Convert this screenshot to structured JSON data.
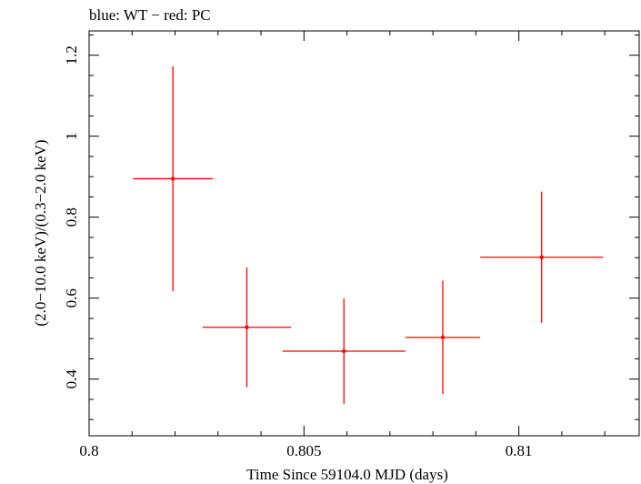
{
  "chart_data": {
    "type": "scatter",
    "title": "blue: WT − red: PC",
    "xlabel": "Time Since 59104.0 MJD (days)",
    "ylabel": "(2.0−10.0 keV)/(0.3−2.0 keV)",
    "xlim": [
      0.8,
      0.8128
    ],
    "ylim": [
      0.26,
      1.26
    ],
    "x_ticks": [
      0.8,
      0.805,
      0.81
    ],
    "x_tick_labels": [
      "0.8",
      "0.805",
      "0.81"
    ],
    "y_ticks": [
      0.4,
      0.6,
      0.8,
      1.0,
      1.2
    ],
    "y_tick_labels": [
      "0.4",
      "0.6",
      "0.8",
      "1",
      "1.2"
    ],
    "grid": false,
    "series": [
      {
        "name": "PC",
        "color": "#ff0000",
        "points": [
          {
            "x": 0.80195,
            "xerr": 0.00093,
            "y": 0.895,
            "yerr_lo": 0.278,
            "yerr_hi": 0.278
          },
          {
            "x": 0.80367,
            "xerr": 0.00103,
            "y": 0.528,
            "yerr_lo": 0.148,
            "yerr_hi": 0.148
          },
          {
            "x": 0.80593,
            "xerr": 0.00143,
            "y": 0.469,
            "yerr_lo": 0.13,
            "yerr_hi": 0.13
          },
          {
            "x": 0.80823,
            "xerr": 0.00087,
            "y": 0.503,
            "yerr_lo": 0.14,
            "yerr_hi": 0.14
          },
          {
            "x": 0.81053,
            "xerr": 0.00143,
            "y": 0.701,
            "yerr_lo": 0.162,
            "yerr_hi": 0.162
          }
        ]
      }
    ]
  }
}
